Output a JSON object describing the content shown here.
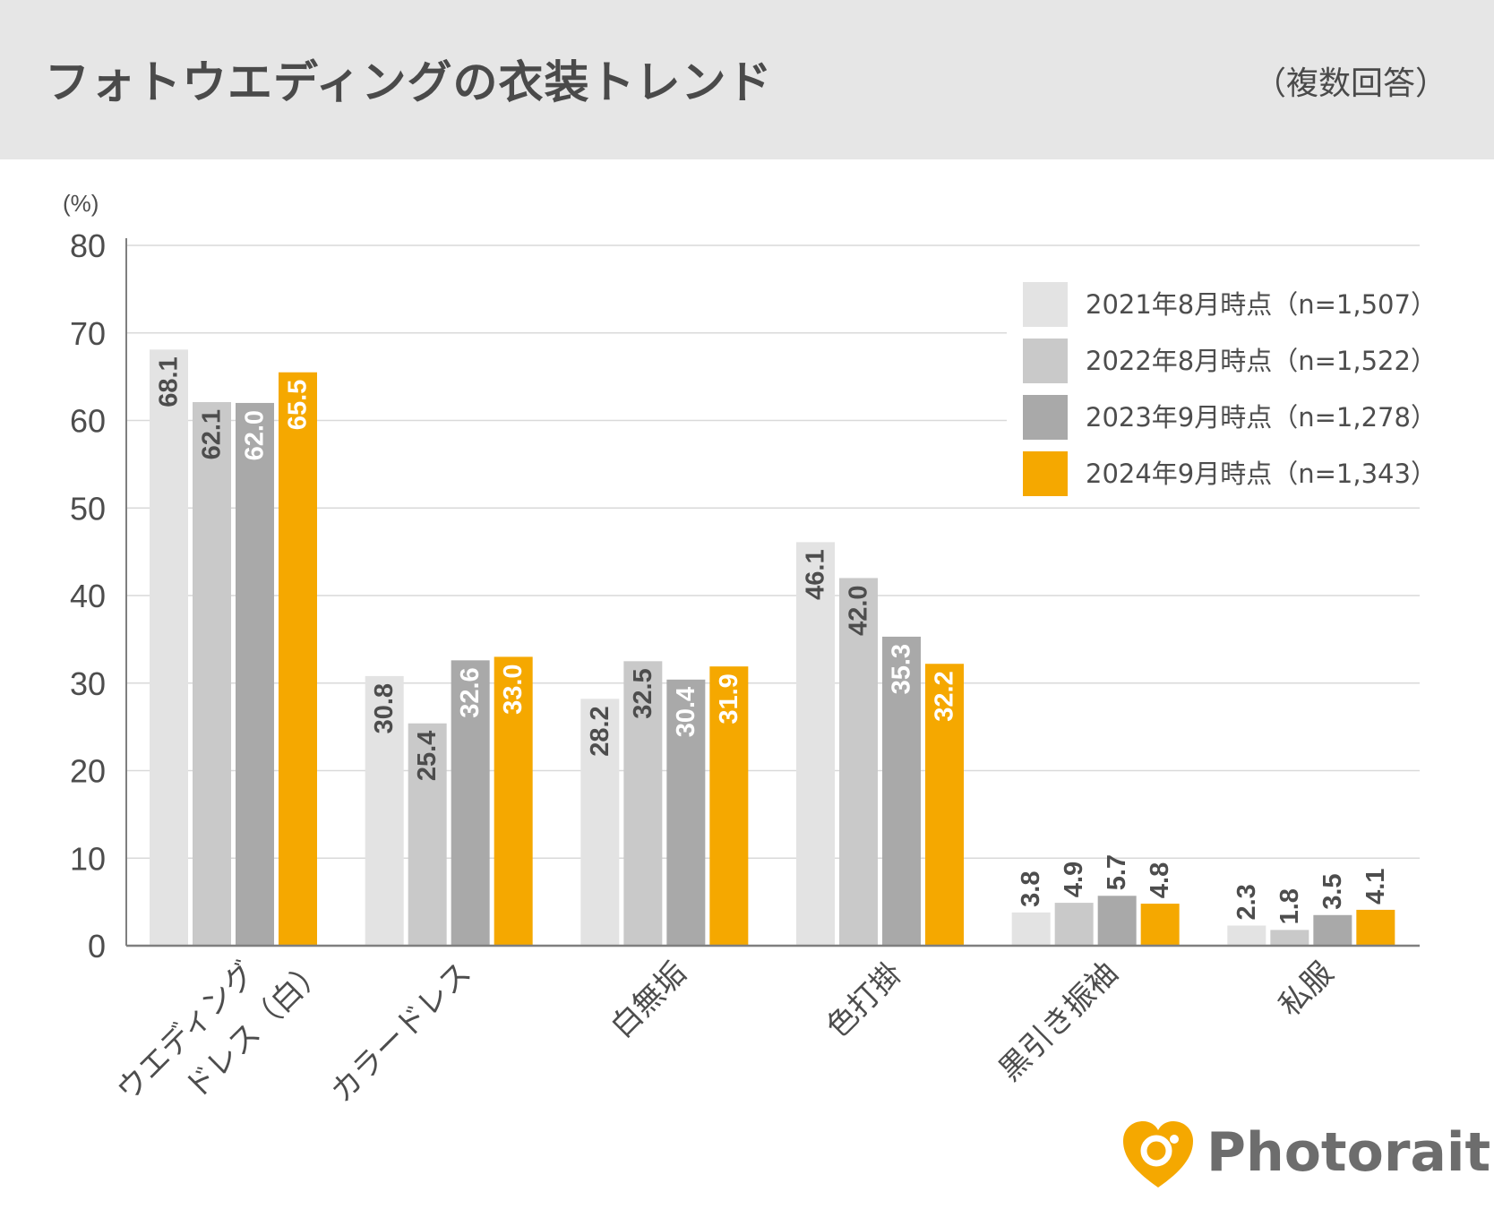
{
  "header": {
    "title": "フォトウエディングの衣装トレンド",
    "subtitle": "（複数回答）"
  },
  "brand": {
    "name": "Photorait",
    "color": "#f5a800"
  },
  "colors": {
    "grid": "#d9d9d9",
    "axis": "#7f7f7f",
    "label_dark": "#4d4d4d",
    "label_light": "#ffffff"
  },
  "chart_data": {
    "type": "bar",
    "title": "フォトウエディングの衣装トレンド",
    "ylabel": "(%)",
    "ylim": [
      0,
      80
    ],
    "yticks": [
      0,
      10,
      20,
      30,
      40,
      50,
      60,
      70,
      80
    ],
    "grid": true,
    "legend_position": "top-right",
    "categories": [
      "ウエディングドレス（白）",
      "カラードレス",
      "白無垢",
      "色打掛",
      "黒引き振袖",
      "私服"
    ],
    "category_lines": [
      [
        "ウエディング",
        "ドレス（白）"
      ],
      [
        "カラードレス"
      ],
      [
        "白無垢"
      ],
      [
        "色打掛"
      ],
      [
        "黒引き振袖"
      ],
      [
        "私服"
      ]
    ],
    "series": [
      {
        "name": "2021年8月時点（n=1,507）",
        "color": "#e3e3e3",
        "label_color": "#4d4d4d",
        "values": [
          68.1,
          30.8,
          28.2,
          46.1,
          3.8,
          2.3
        ]
      },
      {
        "name": "2022年8月時点（n=1,522）",
        "color": "#c9c9c9",
        "label_color": "#4d4d4d",
        "values": [
          62.1,
          25.4,
          32.5,
          42.0,
          4.9,
          1.8
        ]
      },
      {
        "name": "2023年9月時点（n=1,278）",
        "color": "#a9a9a9",
        "label_color": "#ffffff",
        "values": [
          62.0,
          32.6,
          30.4,
          35.3,
          5.7,
          3.5
        ]
      },
      {
        "name": "2024年9月時点（n=1,343）",
        "color": "#f5a800",
        "label_color": "#ffffff",
        "values": [
          65.5,
          33.0,
          31.9,
          32.2,
          4.8,
          4.1
        ]
      }
    ]
  }
}
